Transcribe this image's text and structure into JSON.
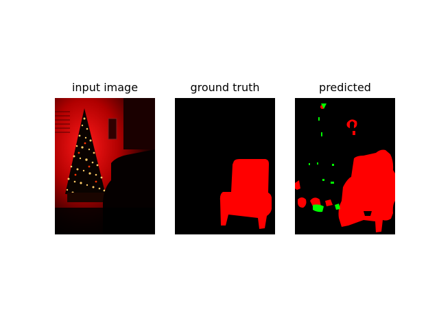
{
  "figure": {
    "panels": [
      {
        "title": "input image"
      },
      {
        "title": "ground truth"
      },
      {
        "title": "predicted"
      }
    ],
    "colors": {
      "background": "#000000",
      "foreground_class": "#ff0000",
      "misclassified": "#00ff00",
      "tree_lights": "#ffcc66"
    }
  }
}
